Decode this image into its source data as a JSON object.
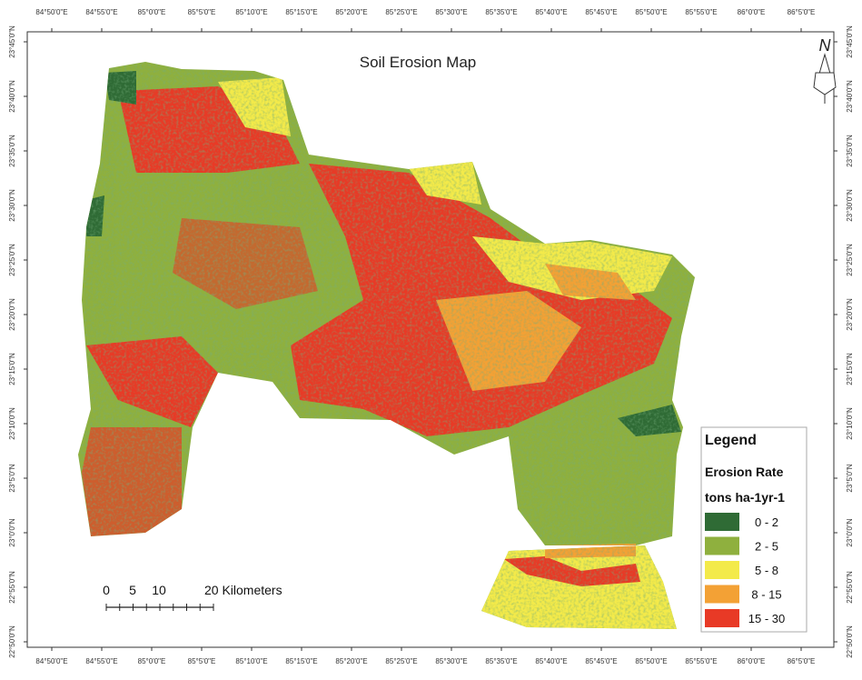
{
  "title": "Soil Erosion Map",
  "north": "N",
  "legend": {
    "title": "Legend",
    "subtitle": "Erosion Rate",
    "unit": "tons ha-1yr-1",
    "items": [
      {
        "label": "0 - 2",
        "color": "#2f6b35"
      },
      {
        "label": "2 - 5",
        "color": "#8fb03e"
      },
      {
        "label": "5 - 8",
        "color": "#f3ea4a"
      },
      {
        "label": "8 - 15",
        "color": "#f3a135"
      },
      {
        "label": "15 - 30",
        "color": "#e83a26"
      }
    ]
  },
  "scale_bar": {
    "labels": [
      "0",
      "5",
      "10",
      "20 Kilometers"
    ]
  },
  "graticule": {
    "longitudes": [
      "84°50'0\"E",
      "84°55'0\"E",
      "85°0'0\"E",
      "85°5'0\"E",
      "85°10'0\"E",
      "85°15'0\"E",
      "85°20'0\"E",
      "85°25'0\"E",
      "85°30'0\"E",
      "85°35'0\"E",
      "85°40'0\"E",
      "85°45'0\"E",
      "85°50'0\"E",
      "85°55'0\"E",
      "86°0'0\"E",
      "86°5'0\"E"
    ],
    "latitudes": [
      "23°45'0\"N",
      "23°40'0\"N",
      "23°35'0\"N",
      "23°30'0\"N",
      "23°25'0\"N",
      "23°20'0\"N",
      "23°15'0\"N",
      "23°10'0\"N",
      "23°5'0\"N",
      "23°0'0\"N",
      "22°55'0\"N",
      "22°50'0\"N"
    ]
  }
}
